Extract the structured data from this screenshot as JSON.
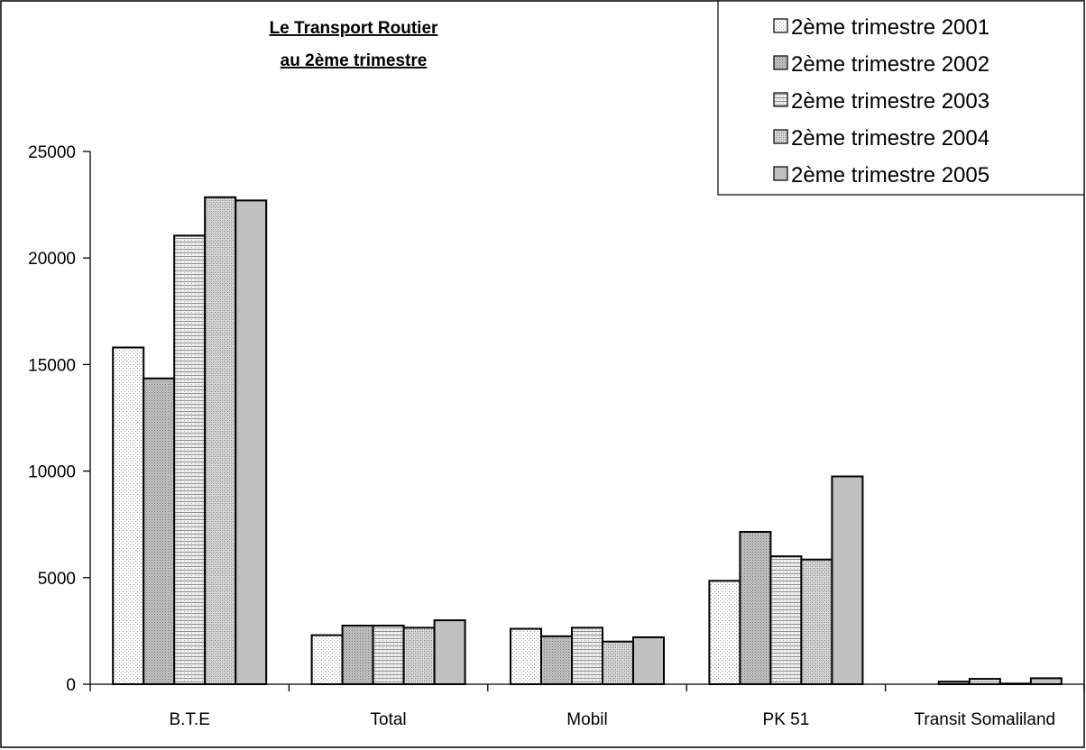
{
  "chart_data": {
    "type": "bar",
    "title": [
      "Le Transport Routier",
      "au 2ème trimestre"
    ],
    "categories": [
      "B.T.E",
      "Total",
      "Mobil",
      "PK 51",
      "Transit Somaliland"
    ],
    "ylim": [
      0,
      25000
    ],
    "yticks": [
      "0",
      "5000",
      "10000",
      "15000",
      "20000",
      "25000"
    ],
    "grid": false,
    "legend_position": "top-right",
    "series": [
      {
        "name": "2ème trimestre 2001",
        "values": [
          15800,
          2300,
          2600,
          4850,
          0
        ],
        "color": "#f0f0f0",
        "pattern": "dots-light"
      },
      {
        "name": "2ème trimestre 2002",
        "values": [
          14350,
          2750,
          2250,
          7150,
          120
        ],
        "color": "#b8b8b8",
        "pattern": "dense-dots"
      },
      {
        "name": "2ème trimestre 2003",
        "values": [
          21050,
          2750,
          2650,
          6000,
          250
        ],
        "color": "#e4e4e4",
        "pattern": "horizontal-lines"
      },
      {
        "name": "2ème trimestre 2004",
        "values": [
          22850,
          2650,
          2000,
          5850,
          30
        ],
        "color": "#d0d0d0",
        "pattern": "cross-dots"
      },
      {
        "name": "2ème trimestre 2005",
        "values": [
          22700,
          3000,
          2200,
          9750,
          280
        ],
        "color": "#c0c0c0",
        "pattern": "solid"
      }
    ]
  }
}
